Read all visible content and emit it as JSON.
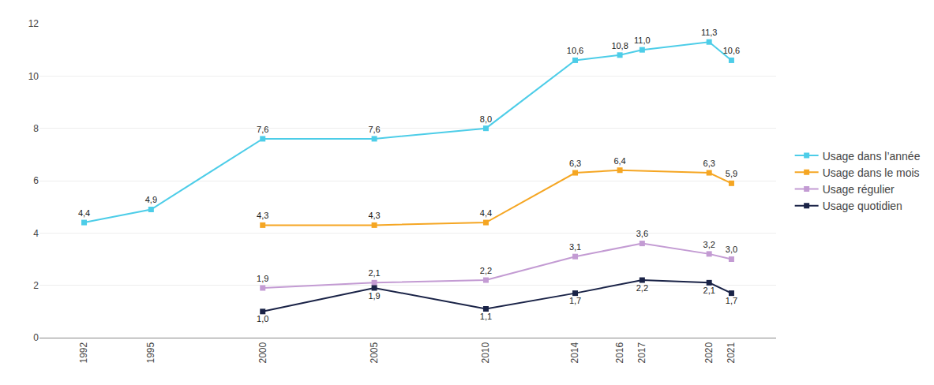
{
  "chart_data": {
    "type": "line",
    "x": [
      1992,
      1995,
      2000,
      2005,
      2010,
      2014,
      2016,
      2017,
      2020,
      2021
    ],
    "series": [
      {
        "name": "Usage dans l’année",
        "color": "#4DCDE8",
        "values": [
          4.4,
          4.9,
          7.6,
          7.6,
          8.0,
          10.6,
          10.8,
          11.0,
          11.3,
          10.6
        ],
        "value_labels": [
          "4,4",
          "4,9",
          "7,6",
          "7,6",
          "8,0",
          "10,6",
          "10,8",
          "11,0",
          "11,3",
          "10,6"
        ]
      },
      {
        "name": "Usage dans le mois",
        "color": "#F5A623",
        "values": [
          null,
          null,
          4.3,
          4.3,
          4.4,
          6.3,
          6.4,
          null,
          6.3,
          5.9
        ],
        "value_labels": [
          null,
          null,
          "4,3",
          "4,3",
          "4,4",
          "6,3",
          "6,4",
          null,
          "6,3",
          "5,9"
        ]
      },
      {
        "name": "Usage régulier",
        "color": "#C39BD3",
        "values": [
          null,
          null,
          1.9,
          2.1,
          2.2,
          3.1,
          null,
          3.6,
          3.2,
          3.0
        ],
        "value_labels": [
          null,
          null,
          "1,9",
          "2,1",
          "2,2",
          "3,1",
          null,
          "3,6",
          "3,2",
          "3,0"
        ]
      },
      {
        "name": "Usage quotidien",
        "color": "#1A2347",
        "values": [
          null,
          null,
          1.0,
          1.9,
          1.1,
          1.7,
          null,
          2.2,
          2.1,
          1.7
        ],
        "value_labels": [
          null,
          null,
          "1,0",
          "1,9",
          "1,1",
          "1,7",
          null,
          "2,2",
          "2,1",
          "1,7"
        ]
      }
    ],
    "xlim": [
      1990,
      2023
    ],
    "xticks": [
      1992,
      1995,
      2000,
      2005,
      2010,
      2014,
      2016,
      2017,
      2020,
      2021
    ],
    "ylim": [
      0,
      12
    ],
    "yticks": [
      0,
      2,
      4,
      6,
      8,
      10,
      12
    ],
    "grid": true,
    "data_labels": true,
    "marker": "square",
    "line_style": "solid",
    "legend": "right"
  }
}
